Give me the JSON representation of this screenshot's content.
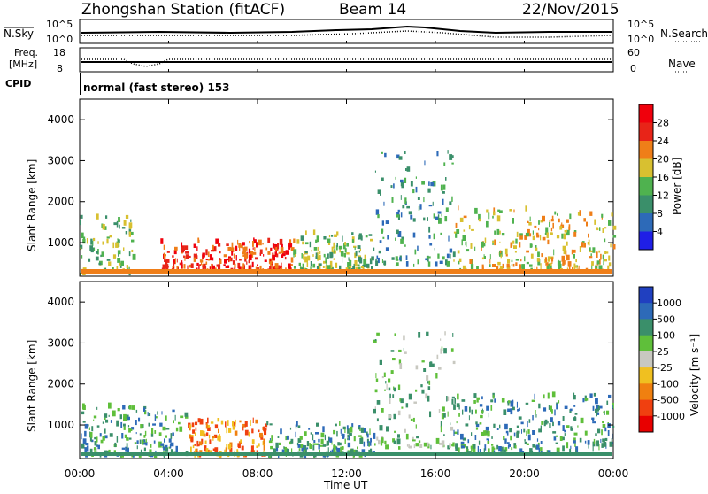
{
  "header": {
    "station": "Zhongshan Station (fitACF)",
    "beam": "Beam 14",
    "date": "22/Nov/2015"
  },
  "top_panels": {
    "nsky_label": "N.Sky",
    "nsky_ticks": [
      "10^5",
      "10^0"
    ],
    "nsearch_label": "N.Search",
    "freq_label_line1": "Freq.",
    "freq_label_line2": "[MHz]",
    "freq_ticks": [
      "18",
      "8"
    ],
    "nave_ticks": [
      "60",
      "0"
    ],
    "nave_label": "Nave",
    "cpid_label": "CPID",
    "cpid_text": "normal (fast stereo) 153"
  },
  "chart_data": [
    {
      "type": "heatmap",
      "panel": "power",
      "ylabel": "Slant Range [km]",
      "ylim": [
        180,
        4500
      ],
      "yticks": [
        "1000",
        "2000",
        "3000",
        "4000"
      ],
      "xlim": [
        "00:00",
        "24:00"
      ],
      "colorbar_label": "Power [dB]",
      "colorbar_ticks": [
        "4",
        "8",
        "12",
        "16",
        "20",
        "24",
        "28"
      ],
      "colors": [
        "#1f1fe6",
        "#2d6ab8",
        "#3a8f6a",
        "#4fb24f",
        "#d8c030",
        "#ef7e18",
        "#e82418",
        "#f0000c"
      ],
      "echo_regions": [
        {
          "t0": 0.0,
          "t1": 0.1,
          "r0": 200,
          "r1": 1600,
          "level": 3
        },
        {
          "t0": 0.15,
          "t1": 0.4,
          "r0": 300,
          "r1": 1000,
          "level": 6
        },
        {
          "t0": 0.4,
          "t1": 0.55,
          "r0": 300,
          "r1": 1200,
          "level": 3
        },
        {
          "t0": 0.55,
          "t1": 0.7,
          "r0": 400,
          "r1": 3200,
          "level": 2
        },
        {
          "t0": 0.7,
          "t1": 1.0,
          "r0": 300,
          "r1": 1800,
          "level": 4
        }
      ]
    },
    {
      "type": "heatmap",
      "panel": "velocity",
      "ylabel": "Slant Range [km]",
      "ylim": [
        180,
        4500
      ],
      "yticks": [
        "1000",
        "2000",
        "3000",
        "4000"
      ],
      "xlim": [
        "00:00",
        "24:00"
      ],
      "colorbar_label": "Velocity [m s⁻¹]",
      "colorbar_ticks": [
        "1000",
        "500",
        "100",
        "25",
        "-25",
        "-100",
        "-500",
        "-1000"
      ],
      "colors": [
        "#2040c0",
        "#2d6ab8",
        "#3a8f6a",
        "#5fbf3a",
        "#c8c8c0",
        "#f0c020",
        "#f08010",
        "#f04010",
        "#e80000"
      ],
      "echo_regions": [
        {
          "t0": 0.0,
          "t1": 0.2,
          "r0": 200,
          "r1": 1400,
          "level": 2
        },
        {
          "t0": 0.2,
          "t1": 0.35,
          "r0": 200,
          "r1": 1100,
          "level": 6
        },
        {
          "t0": 0.35,
          "t1": 0.55,
          "r0": 200,
          "r1": 1000,
          "level": 2
        },
        {
          "t0": 0.55,
          "t1": 0.7,
          "r0": 400,
          "r1": 3200,
          "level": 3
        },
        {
          "t0": 0.7,
          "t1": 1.0,
          "r0": 300,
          "r1": 1700,
          "level": 2
        }
      ]
    }
  ],
  "x_axis": {
    "ticks": [
      "00:00",
      "04:00",
      "08:00",
      "12:00",
      "16:00",
      "20:00",
      "00:00"
    ],
    "label": "Time UT"
  }
}
